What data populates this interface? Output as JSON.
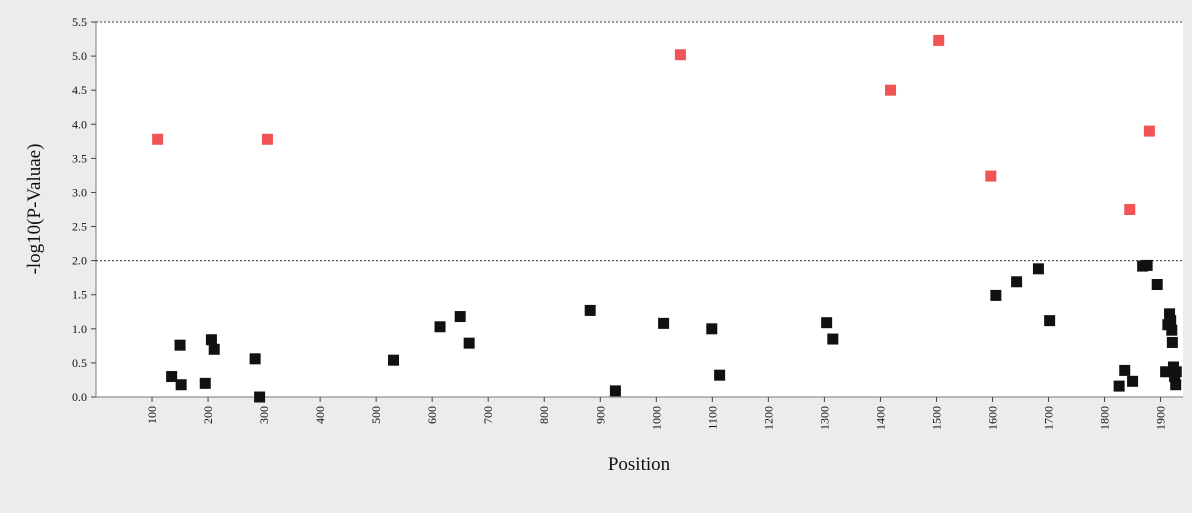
{
  "chart_data": {
    "type": "scatter",
    "xlabel": "Position",
    "ylabel": "-log10(P-Valuae)",
    "xlim": [
      0,
      1940
    ],
    "ylim": [
      0,
      5.5
    ],
    "x_ticks": [
      100,
      200,
      300,
      400,
      500,
      600,
      700,
      800,
      900,
      1000,
      1100,
      1200,
      1300,
      1400,
      1500,
      1600,
      1700,
      1800,
      1900
    ],
    "y_ticks": [
      "0.0",
      "0.5",
      "1.0",
      "1.5",
      "2.0",
      "2.5",
      "3.0",
      "3.5",
      "4.0",
      "4.5",
      "5.0",
      "5.5"
    ],
    "threshold": 2.0,
    "threshold_style": "dotted",
    "grid": false,
    "colors": {
      "significant": "#f05454",
      "not_significant": "#111111",
      "plot_background": "#ffffff",
      "page_background": "#ececec"
    },
    "series": [
      {
        "points": [
          {
            "x": 110,
            "y": 3.78
          },
          {
            "x": 306,
            "y": 3.78
          },
          {
            "x": 1043,
            "y": 5.02
          },
          {
            "x": 1418,
            "y": 4.5
          },
          {
            "x": 1504,
            "y": 5.23
          },
          {
            "x": 1597,
            "y": 3.24
          },
          {
            "x": 1845,
            "y": 2.75
          },
          {
            "x": 1880,
            "y": 3.9
          }
        ]
      },
      {
        "points": [
          {
            "x": 135,
            "y": 0.3
          },
          {
            "x": 150,
            "y": 0.76
          },
          {
            "x": 152,
            "y": 0.18
          },
          {
            "x": 195,
            "y": 0.2
          },
          {
            "x": 206,
            "y": 0.84
          },
          {
            "x": 211,
            "y": 0.7
          },
          {
            "x": 284,
            "y": 0.56
          },
          {
            "x": 292,
            "y": 0.0
          },
          {
            "x": 531,
            "y": 0.54
          },
          {
            "x": 614,
            "y": 1.03
          },
          {
            "x": 650,
            "y": 1.18
          },
          {
            "x": 666,
            "y": 0.79
          },
          {
            "x": 882,
            "y": 1.27
          },
          {
            "x": 927,
            "y": 0.09
          },
          {
            "x": 1013,
            "y": 1.08
          },
          {
            "x": 1099,
            "y": 1.0
          },
          {
            "x": 1113,
            "y": 0.32
          },
          {
            "x": 1304,
            "y": 1.09
          },
          {
            "x": 1315,
            "y": 0.85
          },
          {
            "x": 1606,
            "y": 1.49
          },
          {
            "x": 1643,
            "y": 1.69
          },
          {
            "x": 1682,
            "y": 1.88
          },
          {
            "x": 1702,
            "y": 1.12
          },
          {
            "x": 1826,
            "y": 0.16
          },
          {
            "x": 1836,
            "y": 0.39
          },
          {
            "x": 1850,
            "y": 0.23
          },
          {
            "x": 1868,
            "y": 1.92
          },
          {
            "x": 1876,
            "y": 1.93
          },
          {
            "x": 1894,
            "y": 1.65
          },
          {
            "x": 1909,
            "y": 0.37
          },
          {
            "x": 1913,
            "y": 1.06
          },
          {
            "x": 1916,
            "y": 1.22
          },
          {
            "x": 1918,
            "y": 1.12
          },
          {
            "x": 1920,
            "y": 0.98
          },
          {
            "x": 1921,
            "y": 0.8
          },
          {
            "x": 1923,
            "y": 0.44
          },
          {
            "x": 1925,
            "y": 0.3
          },
          {
            "x": 1927,
            "y": 0.18
          },
          {
            "x": 1928,
            "y": 0.37
          }
        ]
      }
    ]
  }
}
